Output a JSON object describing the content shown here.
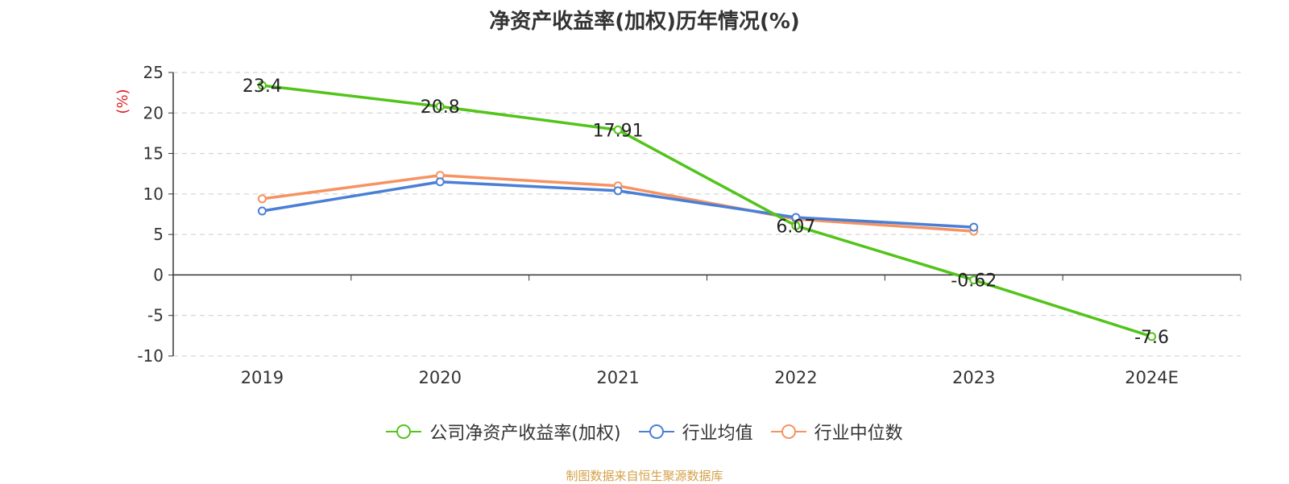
{
  "title": "净资产收益率(加权)历年情况(%)",
  "source": "制图数据来自恒生聚源数据库",
  "chart_data": {
    "type": "line",
    "categories": [
      "2019",
      "2020",
      "2021",
      "2022",
      "2023",
      "2024E"
    ],
    "ylabel": "(%)",
    "ylim": [
      -10,
      25
    ],
    "yticks": [
      -10,
      -5,
      0,
      5,
      10,
      15,
      20,
      25
    ],
    "ytick_labels": [
      "-10",
      "-5",
      "0",
      "5",
      "10",
      "15",
      "20",
      "25"
    ],
    "grid": true,
    "legend_position": "bottom",
    "series": [
      {
        "name": "公司净资产收益率(加权)",
        "color": "#52c41a",
        "values": [
          23.4,
          20.8,
          17.91,
          6.07,
          -0.62,
          -7.6
        ],
        "labels": [
          "23.4",
          "20.8",
          "17.91",
          "6.07",
          "-0.62",
          "-7.6"
        ]
      },
      {
        "name": "行业均值",
        "color": "#4a7fd6",
        "values": [
          7.9,
          11.5,
          10.4,
          7.1,
          5.9,
          null
        ]
      },
      {
        "name": "行业中位数",
        "color": "#f59363",
        "values": [
          9.4,
          12.3,
          11.0,
          6.9,
          5.4,
          null
        ]
      }
    ]
  }
}
